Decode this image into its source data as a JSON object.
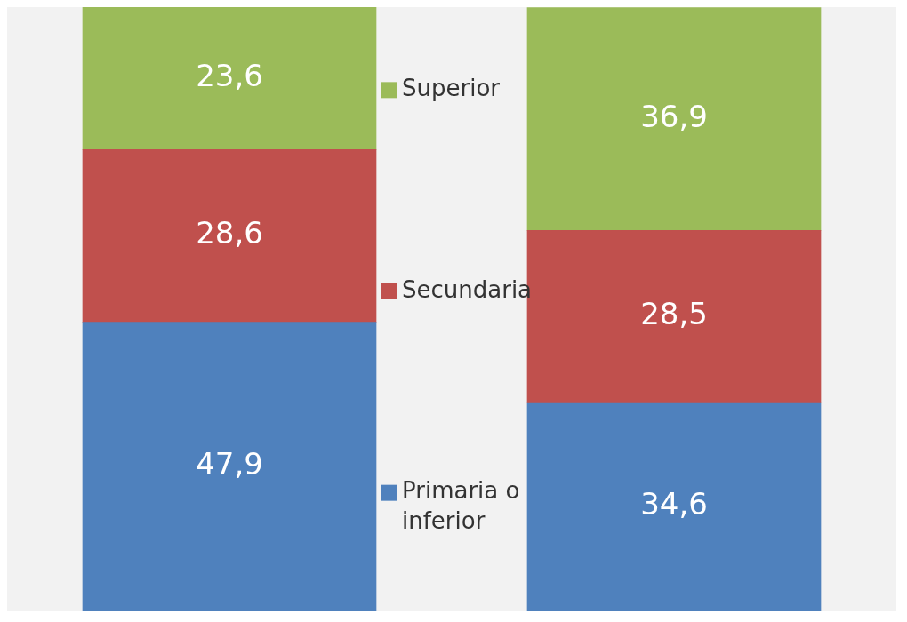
{
  "chart_data": {
    "type": "bar",
    "stacked": true,
    "categories": [
      null,
      null
    ],
    "series": [
      {
        "name": "Primaria o inferior",
        "color": "#4f81bd",
        "values": [
          47.9,
          34.6
        ],
        "value_labels": [
          "47,9",
          "34,6"
        ]
      },
      {
        "name": "Secundaria",
        "color": "#c0504d",
        "values": [
          28.6,
          28.5
        ],
        "value_labels": [
          "28,6",
          "28,5"
        ]
      },
      {
        "name": "Superior",
        "color": "#9bbb59",
        "values": [
          23.6,
          36.9
        ],
        "value_labels": [
          "23,6",
          "36,9"
        ]
      }
    ],
    "ylim": [
      0,
      100.1
    ],
    "legend": "center",
    "tick_labels": false
  }
}
